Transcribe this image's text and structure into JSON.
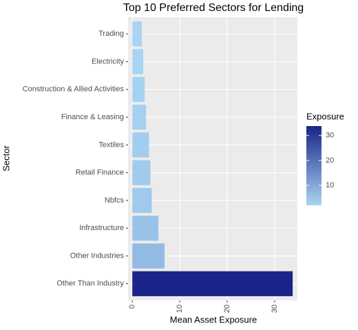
{
  "chart_data": {
    "type": "bar",
    "orientation": "horizontal",
    "title": "Top 10 Preferred Sectors for Lending",
    "x_label": "Mean Asset Exposure",
    "y_label": "Sector",
    "categories": [
      "Trading",
      "Electricity",
      "Construction & Allied Activities",
      "Finance & Leasing",
      "Textiles",
      "Retail Finance",
      "Nbfcs",
      "Infrastructure",
      "Other Industries",
      "Other Than Industry"
    ],
    "values": [
      2.0,
      2.3,
      2.6,
      2.9,
      3.5,
      3.8,
      4.1,
      5.5,
      6.8,
      33.8
    ],
    "xlim": [
      -0.9,
      34.8
    ],
    "xticks": [
      0,
      10,
      20,
      30
    ],
    "grid": true,
    "legend": {
      "title": "Exposure",
      "position": "right",
      "ticks": [
        10,
        20,
        30
      ],
      "low_color": "#a9d5f3",
      "high_color": "#1a2489"
    }
  }
}
